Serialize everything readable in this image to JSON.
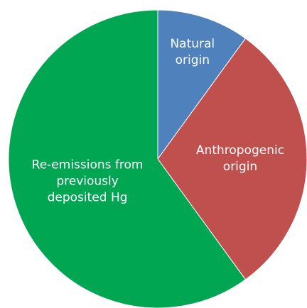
{
  "chart_data": {
    "type": "pie",
    "categories": [
      "Natural origin",
      "Anthropogenic origin",
      "Re-emissions from previously deposited Hg"
    ],
    "values": [
      10,
      30,
      60
    ],
    "colors": [
      "#4f81bd",
      "#c0504d",
      "#00a651"
    ]
  }
}
